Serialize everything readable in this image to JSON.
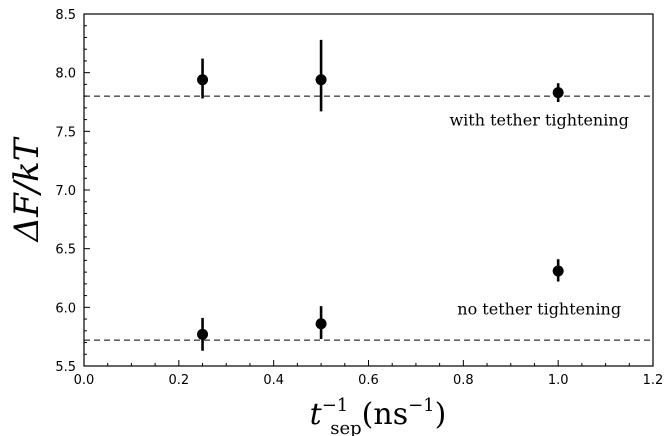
{
  "chart_data": {
    "type": "scatter",
    "xlabel": {
      "base": "t",
      "sup": "−1",
      "sub": "sep",
      "rest": "(ns",
      "rest_sup": "−1",
      "close": ")"
    },
    "ylabel": "ΔF/kT",
    "xlim": [
      0.0,
      1.2
    ],
    "ylim": [
      5.5,
      8.5
    ],
    "xticks": [
      0.0,
      0.2,
      0.4,
      0.6,
      0.8,
      1.0,
      1.2
    ],
    "xtick_labels": [
      "0.0",
      "0.2",
      "0.4",
      "0.6",
      "0.8",
      "1.0",
      "1.2"
    ],
    "yticks": [
      5.5,
      6.0,
      6.5,
      7.0,
      7.5,
      8.0,
      8.5
    ],
    "ytick_labels": [
      "5.5",
      "6.0",
      "6.5",
      "7.0",
      "7.5",
      "8.0",
      "8.5"
    ],
    "grid": false,
    "series": [
      {
        "x": [
          0.25,
          0.5,
          1.0
        ],
        "y": [
          7.94,
          7.94,
          7.83
        ],
        "err_low": [
          7.78,
          7.67,
          7.75
        ],
        "err_high": [
          8.12,
          8.28,
          7.91
        ]
      },
      {
        "x": [
          0.25,
          0.5,
          1.0
        ],
        "y": [
          5.77,
          5.86,
          6.31
        ],
        "err_low": [
          5.63,
          5.73,
          6.22
        ],
        "err_high": [
          5.91,
          6.01,
          6.41
        ]
      }
    ],
    "reference_lines": [
      7.8,
      5.72
    ],
    "annotations": [
      {
        "text": "with tether tightening",
        "x": 0.96,
        "y": 7.55
      },
      {
        "text": "no tether tightening",
        "x": 0.96,
        "y": 5.94
      }
    ]
  }
}
